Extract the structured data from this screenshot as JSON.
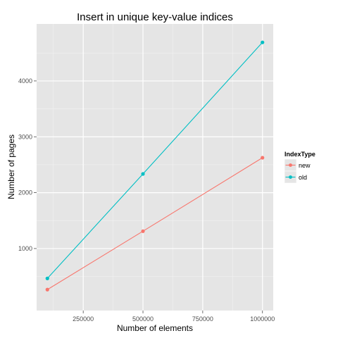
{
  "chart_data": {
    "type": "line",
    "title": "Insert in unique key-value indices",
    "xlabel": "Number of elements",
    "ylabel": "Number of pages",
    "x": [
      100000,
      500000,
      1000000
    ],
    "series": [
      {
        "name": "new",
        "color": "#F8766D",
        "values": [
          265,
          1310,
          2625
        ]
      },
      {
        "name": "old",
        "color": "#00BFC4",
        "values": [
          465,
          2335,
          4690
        ]
      }
    ],
    "xlim": [
      55000,
      1045000
    ],
    "ylim": [
      -110,
      5020
    ],
    "xticks": [
      250000,
      500000,
      750000,
      1000000
    ],
    "xtick_labels": [
      "250000",
      "500000",
      "750000",
      "1000000"
    ],
    "yticks": [
      1000,
      2000,
      3000,
      4000
    ],
    "ytick_labels": [
      "1000",
      "2000",
      "3000",
      "4000"
    ],
    "grid": true,
    "panel_background": "#E5E5E5",
    "legend": {
      "title": "IndexType",
      "placement": "right",
      "entries": [
        "new",
        "old"
      ]
    }
  }
}
